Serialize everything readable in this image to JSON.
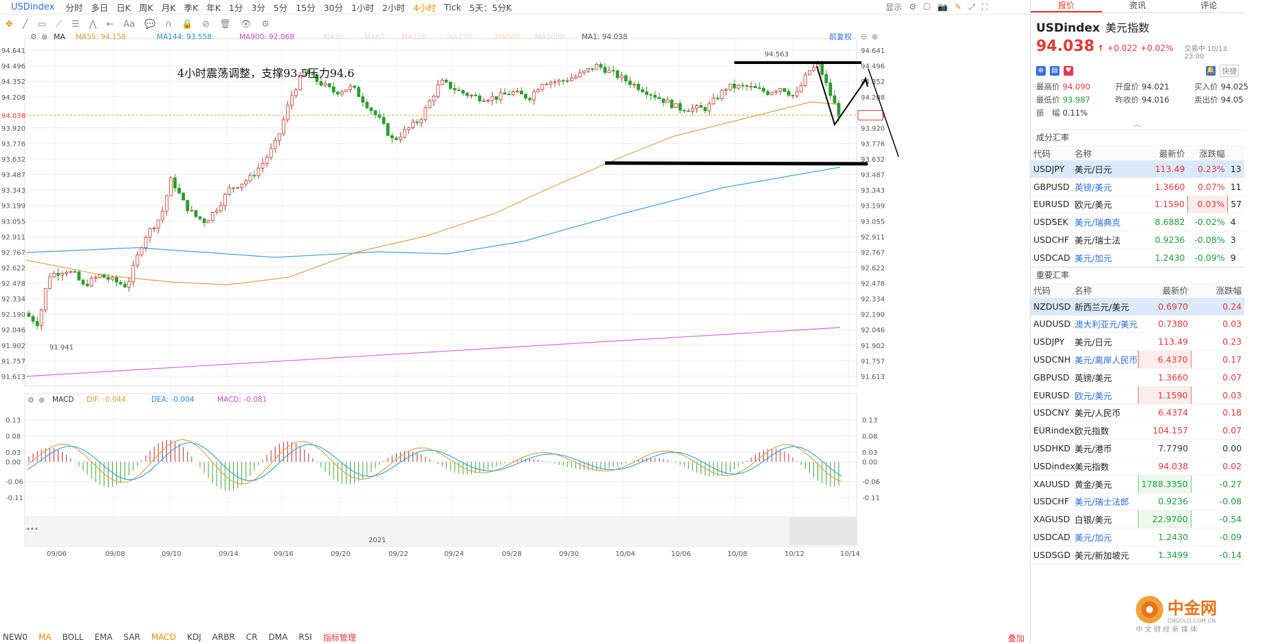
{
  "toolbar": {
    "symbol": "USDindex",
    "timeframes": [
      "分时",
      "多日",
      "日K",
      "周K",
      "月K",
      "季K",
      "年K",
      "1分",
      "3分",
      "5分",
      "15分",
      "30分",
      "1小时",
      "2小时",
      "4小时",
      "Tick",
      "5天：5分K"
    ],
    "active_timeframe": "4小时",
    "display_menu": "显示"
  },
  "chart": {
    "ma_label": "MA",
    "ma_indicators": [
      {
        "label": "MA55: 94.158",
        "color": "#d99b3a"
      },
      {
        "label": "MA144: 93.558",
        "color": "#2a8fd8"
      },
      {
        "label": "MA900: 92.068",
        "color": "#c24fd0"
      },
      {
        "label": "MA30:",
        "color": "#cfe0f0"
      },
      {
        "label": "MA60:",
        "color": "#cfe0f0"
      },
      {
        "label": "MA120:",
        "color": "#f3d0d8"
      },
      {
        "label": "MA250:",
        "color": "#cfe8f3"
      },
      {
        "label": "MA500:",
        "color": "#f6dcc0"
      },
      {
        "label": "MA1000:",
        "color": "#cfe0f0"
      },
      {
        "label": "MA1: 94.038",
        "color": "#555555"
      }
    ],
    "adjust_label": "前复权",
    "annotation": "4小时震荡调整，支撑93.5压力94.6",
    "high_label": "94.563",
    "low_label": "91.941",
    "current_price": "94.038",
    "price_ticks": [
      "94.641",
      "94.496",
      "94.352",
      "94.208",
      "94.038",
      "93.920",
      "93.776",
      "93.632",
      "93.487",
      "93.343",
      "93.199",
      "93.055",
      "92.911",
      "92.767",
      "92.622",
      "92.478",
      "92.334",
      "92.190",
      "92.046",
      "91.902",
      "91.757",
      "91.613"
    ],
    "macd_label": "MACD",
    "macd_values": [
      {
        "label": "DIF: -0.044",
        "color": "#d99b3a"
      },
      {
        "label": "DEA: -0.004",
        "color": "#2a8fd8"
      },
      {
        "label": "MACD: -0.081",
        "color": "#c24fd0"
      }
    ],
    "macd_ticks": [
      "0.13",
      "0.08",
      "0.03",
      "0.00",
      "-0.06",
      "-0.11"
    ],
    "date_ticks": [
      "09/06",
      "09/08",
      "09/10",
      "09/14",
      "09/16",
      "09/20",
      "09/22",
      "09/24",
      "09/28",
      "09/30",
      "10/04",
      "10/06",
      "10/08",
      "10/12",
      "10/14"
    ],
    "year_label": "2021"
  },
  "bottom": {
    "indicators": [
      "NEW0",
      "MA",
      "BOLL",
      "EMA",
      "SAR",
      "MACD",
      "KDJ",
      "ARBR",
      "CR",
      "DMA",
      "RSI",
      "指标管理"
    ],
    "active": [
      "MA",
      "MACD"
    ],
    "right_label": "叠加"
  },
  "panel": {
    "tabs": [
      "报价",
      "资讯",
      "评论"
    ],
    "symbol": "USDindex",
    "name": "美元指数",
    "price": "94.038",
    "arrow": "↑",
    "change": "+0.022",
    "change_pct": "+0.02%",
    "status": "交易中 10/13 23:00",
    "quick_label": "快捷",
    "stats": [
      {
        "k": "最高价",
        "v": "94.090",
        "c": "red"
      },
      {
        "k": "开盘价",
        "v": "94.021",
        "c": "normal"
      },
      {
        "k": "买入价",
        "v": "94.025",
        "c": "normal"
      },
      {
        "k": "最低价",
        "v": "93.987",
        "c": "green"
      },
      {
        "k": "昨收价",
        "v": "94.016",
        "c": "normal"
      },
      {
        "k": "卖出价",
        "v": "94.05",
        "c": "normal"
      },
      {
        "k": "振　幅",
        "v": "0.11%",
        "c": "normal"
      }
    ],
    "section1": "成分汇率",
    "headers1": [
      "代码",
      "名称",
      "最新价",
      "涨跌幅"
    ],
    "rows1": [
      {
        "code": "USDJPY",
        "name": "美元/日元",
        "price": "113.49",
        "pct": "0.23%",
        "extra": "13",
        "dir": "up",
        "sel": true
      },
      {
        "code": "GBPUSD",
        "name": "英镑/美元",
        "price": "1.3660",
        "pct": "0.07%",
        "extra": "11",
        "dir": "up"
      },
      {
        "code": "EURUSD",
        "name": "欧元/美元",
        "price": "1.1590",
        "pct": "0.03%",
        "extra": "57",
        "dir": "up",
        "box": "red"
      },
      {
        "code": "USDSEK",
        "name": "美元/瑞典克",
        "price": "8.6882",
        "pct": "-0.02%",
        "extra": "4",
        "dir": "down"
      },
      {
        "code": "USDCHF",
        "name": "美元/瑞士法",
        "price": "0.9236",
        "pct": "-0.08%",
        "extra": "3",
        "dir": "down"
      },
      {
        "code": "USDCAD",
        "name": "美元/加元",
        "price": "1.2430",
        "pct": "-0.09%",
        "extra": "9",
        "dir": "down"
      }
    ],
    "section2": "重要汇率",
    "headers2": [
      "代码",
      "名称",
      "最新价",
      "涨跌幅"
    ],
    "rows2": [
      {
        "code": "NZDUSD",
        "name": "新西兰元/美元",
        "price": "0.6970",
        "pct": "0.24",
        "dir": "up",
        "sel": true
      },
      {
        "code": "AUDUSD",
        "name": "澳大利亚元/美元",
        "price": "0.7380",
        "pct": "0.03",
        "dir": "up"
      },
      {
        "code": "USDJPY",
        "name": "美元/日元",
        "price": "113.49",
        "pct": "0.23",
        "dir": "up"
      },
      {
        "code": "USDCNH",
        "name": "美元/离岸人民币",
        "price": "6.4370",
        "pct": "0.17",
        "dir": "up",
        "box": "red"
      },
      {
        "code": "GBPUSD",
        "name": "英镑/美元",
        "price": "1.3660",
        "pct": "0.07",
        "dir": "up"
      },
      {
        "code": "EURUSD",
        "name": "欧元/美元",
        "price": "1.1590",
        "pct": "0.03",
        "dir": "up",
        "box": "red"
      },
      {
        "code": "USDCNY",
        "name": "美元/人民币",
        "price": "6.4374",
        "pct": "0.18",
        "dir": "up"
      },
      {
        "code": "EURindex",
        "name": "欧元指数",
        "price": "104.157",
        "pct": "0.07",
        "dir": "up"
      },
      {
        "code": "USDHKD",
        "name": "美元/港币",
        "price": "7.7790",
        "pct": "0.00",
        "dir": "flat"
      },
      {
        "code": "USDindex",
        "name": "美元指数",
        "price": "94.038",
        "pct": "0.02",
        "dir": "up"
      },
      {
        "code": "XAUUSD",
        "name": "黄金/美元",
        "price": "1788.3350",
        "pct": "-0.27",
        "dir": "down",
        "box": "green"
      },
      {
        "code": "USDCHF",
        "name": "美元/瑞士法郎",
        "price": "0.9236",
        "pct": "-0.08",
        "dir": "down"
      },
      {
        "code": "XAGUSD",
        "name": "白银/美元",
        "price": "22.9700",
        "pct": "-0.54",
        "dir": "down",
        "box": "green"
      },
      {
        "code": "USDCAD",
        "name": "美元/加元",
        "price": "1.2430",
        "pct": "-0.09",
        "dir": "down"
      },
      {
        "code": "USDSGD",
        "name": "美元/新加坡元",
        "price": "1.3499",
        "pct": "-0.14",
        "dir": "down"
      }
    ],
    "logo_text": "中金网",
    "logo_sub": "CNGOLD.COM.CN",
    "logo_tag": "中 文 财 经 新 媒 体"
  }
}
